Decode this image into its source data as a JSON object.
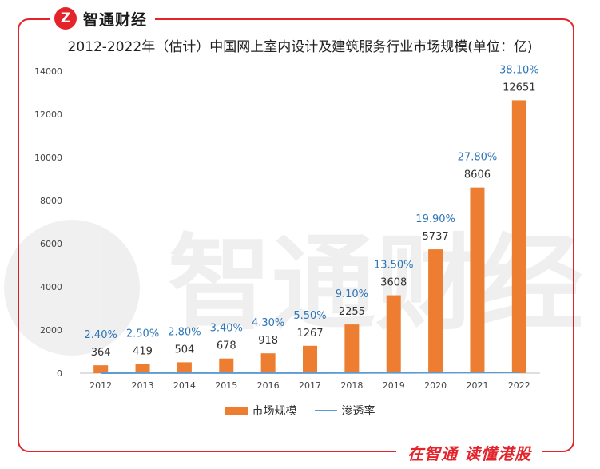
{
  "brand": {
    "logo_mark": "Z",
    "name": "智通财经",
    "slogan": "在智通  读懂港股"
  },
  "colors": {
    "accent": "#e4242b",
    "bar": "#ed7d31",
    "line": "#5b9bd5",
    "pct_label": "#2e75b6"
  },
  "chart_data": {
    "type": "bar",
    "title": "2012-2022年（估计）中国网上室内设计及建筑服务行业市场规模(单位：亿)",
    "categories": [
      "2012",
      "2013",
      "2014",
      "2015",
      "2016",
      "2017",
      "2018",
      "2019",
      "2020",
      "2021",
      "2022"
    ],
    "series": [
      {
        "name": "市场规模",
        "kind": "bar",
        "values": [
          364,
          419,
          504,
          678,
          918,
          1267,
          2255,
          3608,
          5737,
          8606,
          12651
        ]
      },
      {
        "name": "渗透率",
        "kind": "line",
        "values": [
          2.4,
          2.5,
          2.8,
          3.4,
          4.3,
          5.5,
          9.1,
          13.5,
          19.9,
          27.8,
          38.1
        ],
        "labels": [
          "2.40%",
          "2.50%",
          "2.80%",
          "3.40%",
          "4.30%",
          "5.50%",
          "9.10%",
          "13.50%",
          "19.90%",
          "27.80%",
          "38.10%"
        ]
      }
    ],
    "yticks": [
      0,
      2000,
      4000,
      6000,
      8000,
      10000,
      12000,
      14000
    ],
    "ylim": [
      0,
      14000
    ],
    "xlabel": "",
    "ylabel": "",
    "legend": "bottom"
  }
}
